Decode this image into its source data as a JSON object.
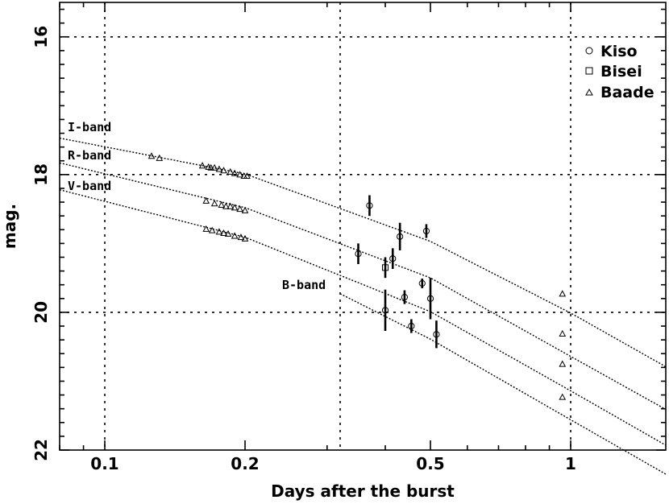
{
  "chart_data": {
    "type": "scatter",
    "title": "",
    "xlabel": "Days after the burst",
    "ylabel": "mag.",
    "x_scale": "log",
    "xlim": [
      0.08,
      1.6
    ],
    "ylim": [
      22,
      15.5
    ],
    "y_inverted": true,
    "x_ticks": [
      {
        "value": 0.1,
        "label": "0.1"
      },
      {
        "value": 0.2,
        "label": "0.2"
      },
      {
        "value": 0.5,
        "label": "0.5"
      },
      {
        "value": 1,
        "label": "1"
      }
    ],
    "y_ticks": [
      {
        "value": 16,
        "label": "16"
      },
      {
        "value": 18,
        "label": "18"
      },
      {
        "value": 20,
        "label": "20"
      },
      {
        "value": 22,
        "label": "22"
      }
    ],
    "grid": {
      "x": [
        0.1,
        0.32,
        1
      ],
      "y": [
        16,
        18,
        20
      ],
      "style": "dotted"
    },
    "legend": {
      "position": "top-right",
      "entries": [
        {
          "label": "Kiso",
          "marker": "circle"
        },
        {
          "label": "Bisei",
          "marker": "square"
        },
        {
          "label": "Baade",
          "marker": "triangle"
        }
      ]
    },
    "fits": [
      {
        "name": "I-band",
        "label": "I-band",
        "x": [
          0.08,
          0.2,
          0.5,
          1,
          1.6
        ],
        "y": [
          17.47,
          17.99,
          18.97,
          20.01,
          20.79
        ]
      },
      {
        "name": "R-band",
        "label": "R-band",
        "x": [
          0.08,
          0.2,
          0.5,
          1,
          1.6
        ],
        "y": [
          17.83,
          18.48,
          19.5,
          20.64,
          21.41
        ]
      },
      {
        "name": "V-band",
        "label": "V-band",
        "x": [
          0.08,
          0.2,
          0.5,
          1,
          1.6
        ],
        "y": [
          18.22,
          18.91,
          19.99,
          21.14,
          21.93
        ]
      },
      {
        "name": "B-band",
        "label": "B-band",
        "x": [
          0.32,
          0.5,
          1,
          1.6
        ],
        "y": [
          19.73,
          20.39,
          21.56,
          22.35
        ]
      }
    ],
    "series": [
      {
        "name": "Kiso",
        "marker": "circle",
        "points": [
          {
            "x": 0.35,
            "y": 19.15,
            "err": 0.15
          },
          {
            "x": 0.37,
            "y": 18.45,
            "err": 0.15
          },
          {
            "x": 0.4,
            "y": 19.97,
            "err": 0.3
          },
          {
            "x": 0.415,
            "y": 19.22,
            "err": 0.15
          },
          {
            "x": 0.43,
            "y": 18.9,
            "err": 0.2
          },
          {
            "x": 0.44,
            "y": 19.78,
            "err": 0.1
          },
          {
            "x": 0.455,
            "y": 20.2,
            "err": 0.1
          },
          {
            "x": 0.48,
            "y": 19.58,
            "err": 0.07
          },
          {
            "x": 0.49,
            "y": 18.82,
            "err": 0.1
          },
          {
            "x": 0.5,
            "y": 19.8,
            "err": 0.3
          },
          {
            "x": 0.515,
            "y": 20.32,
            "err": 0.2
          }
        ]
      },
      {
        "name": "Bisei",
        "marker": "square",
        "points": [
          {
            "x": 0.4,
            "y": 19.35,
            "err": 0.15
          }
        ]
      },
      {
        "name": "Baade",
        "marker": "triangle",
        "points": [
          {
            "x": 0.126,
            "y": 17.73
          },
          {
            "x": 0.131,
            "y": 17.76
          },
          {
            "x": 0.162,
            "y": 17.87
          },
          {
            "x": 0.167,
            "y": 17.89
          },
          {
            "x": 0.169,
            "y": 17.9
          },
          {
            "x": 0.172,
            "y": 17.9
          },
          {
            "x": 0.176,
            "y": 17.92
          },
          {
            "x": 0.18,
            "y": 17.94
          },
          {
            "x": 0.186,
            "y": 17.96
          },
          {
            "x": 0.19,
            "y": 17.98
          },
          {
            "x": 0.195,
            "y": 18.0
          },
          {
            "x": 0.199,
            "y": 18.02
          },
          {
            "x": 0.202,
            "y": 18.02
          },
          {
            "x": 0.165,
            "y": 18.38
          },
          {
            "x": 0.172,
            "y": 18.42
          },
          {
            "x": 0.178,
            "y": 18.44
          },
          {
            "x": 0.182,
            "y": 18.46
          },
          {
            "x": 0.186,
            "y": 18.46
          },
          {
            "x": 0.19,
            "y": 18.48
          },
          {
            "x": 0.195,
            "y": 18.5
          },
          {
            "x": 0.2,
            "y": 18.52
          },
          {
            "x": 0.165,
            "y": 18.79
          },
          {
            "x": 0.17,
            "y": 18.81
          },
          {
            "x": 0.176,
            "y": 18.83
          },
          {
            "x": 0.18,
            "y": 18.85
          },
          {
            "x": 0.184,
            "y": 18.86
          },
          {
            "x": 0.19,
            "y": 18.89
          },
          {
            "x": 0.196,
            "y": 18.91
          },
          {
            "x": 0.2,
            "y": 18.93
          },
          {
            "x": 0.96,
            "y": 19.73
          },
          {
            "x": 0.96,
            "y": 20.31
          },
          {
            "x": 0.96,
            "y": 20.75
          },
          {
            "x": 0.96,
            "y": 21.23
          }
        ]
      }
    ]
  }
}
